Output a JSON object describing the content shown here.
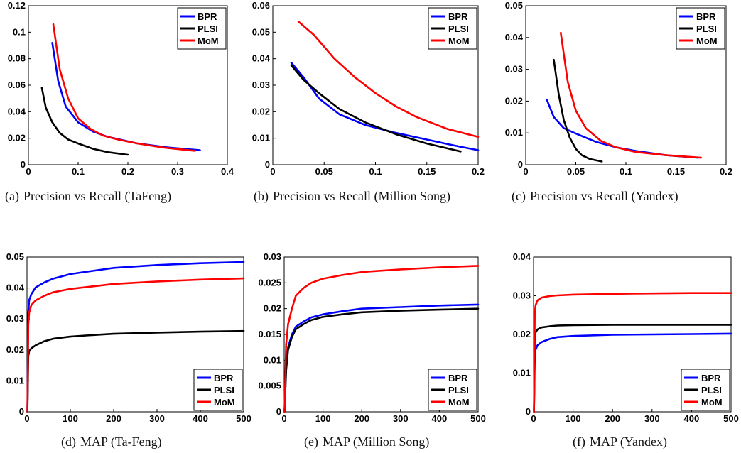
{
  "chart_data": [
    {
      "type": "line",
      "caption_label": "(a)",
      "caption": "Precision vs Recall (TaFeng)",
      "xlim": [
        0,
        0.4
      ],
      "ylim": [
        0,
        0.12
      ],
      "xticks": [
        "0",
        "0.1",
        "0.2",
        "0.3",
        "0.4"
      ],
      "xtick_values": [
        0,
        0.1,
        0.2,
        0.3,
        0.4
      ],
      "yticks": [
        "0",
        "0.02",
        "0.04",
        "0.06",
        "0.08",
        "0.1",
        "0.12"
      ],
      "ytick_values": [
        0,
        0.02,
        0.04,
        0.06,
        0.08,
        0.1,
        0.12
      ],
      "legend_position": "top-right",
      "series": [
        {
          "name": "BPR",
          "color": "#0000ff",
          "x": [
            0.048,
            0.06,
            0.075,
            0.1,
            0.13,
            0.16,
            0.22,
            0.28,
            0.345
          ],
          "y": [
            0.092,
            0.063,
            0.044,
            0.032,
            0.025,
            0.021,
            0.016,
            0.013,
            0.011
          ]
        },
        {
          "name": "PLSI",
          "color": "#000000",
          "x": [
            0.027,
            0.035,
            0.048,
            0.063,
            0.08,
            0.1,
            0.13,
            0.16,
            0.2
          ],
          "y": [
            0.058,
            0.043,
            0.032,
            0.024,
            0.019,
            0.016,
            0.012,
            0.0095,
            0.0075
          ]
        },
        {
          "name": "MoM",
          "color": "#ff0000",
          "x": [
            0.05,
            0.063,
            0.08,
            0.1,
            0.125,
            0.15,
            0.18,
            0.22,
            0.27,
            0.335
          ],
          "y": [
            0.106,
            0.072,
            0.05,
            0.035,
            0.027,
            0.022,
            0.019,
            0.016,
            0.013,
            0.0105
          ]
        }
      ]
    },
    {
      "type": "line",
      "caption_label": "(b)",
      "caption": "Precision vs Recall (Million Song)",
      "xlim": [
        0,
        0.2
      ],
      "ylim": [
        0,
        0.06
      ],
      "xticks": [
        "0",
        "0.05",
        "0.1",
        "0.15",
        "0.2"
      ],
      "xtick_values": [
        0,
        0.05,
        0.1,
        0.15,
        0.2
      ],
      "yticks": [
        "0",
        "0.01",
        "0.02",
        "0.03",
        "0.04",
        "0.05",
        "0.06"
      ],
      "ytick_values": [
        0,
        0.01,
        0.02,
        0.03,
        0.04,
        0.05,
        0.06
      ],
      "legend_position": "top-right",
      "series": [
        {
          "name": "BPR",
          "color": "#0000ff",
          "x": [
            0.018,
            0.03,
            0.045,
            0.065,
            0.09,
            0.12,
            0.15,
            0.18,
            0.2
          ],
          "y": [
            0.0385,
            0.033,
            0.025,
            0.019,
            0.015,
            0.012,
            0.0095,
            0.007,
            0.0055
          ]
        },
        {
          "name": "PLSI",
          "color": "#000000",
          "x": [
            0.018,
            0.03,
            0.045,
            0.065,
            0.09,
            0.12,
            0.15,
            0.183
          ],
          "y": [
            0.0375,
            0.032,
            0.027,
            0.021,
            0.016,
            0.0115,
            0.008,
            0.005
          ]
        },
        {
          "name": "MoM",
          "color": "#ff0000",
          "x": [
            0.025,
            0.04,
            0.06,
            0.08,
            0.1,
            0.12,
            0.14,
            0.17,
            0.2
          ],
          "y": [
            0.054,
            0.049,
            0.04,
            0.033,
            0.027,
            0.022,
            0.018,
            0.0135,
            0.0105
          ]
        }
      ]
    },
    {
      "type": "line",
      "caption_label": "(c)",
      "caption": "Precision vs Recall (Yandex)",
      "xlim": [
        0,
        0.2
      ],
      "ylim": [
        0,
        0.05
      ],
      "xticks": [
        "0",
        "0.05",
        "0.1",
        "0.15",
        "0.2"
      ],
      "xtick_values": [
        0,
        0.05,
        0.1,
        0.15,
        0.2
      ],
      "yticks": [
        "0",
        "0.01",
        "0.02",
        "0.03",
        "0.04",
        "0.05"
      ],
      "ytick_values": [
        0,
        0.01,
        0.02,
        0.03,
        0.04,
        0.05
      ],
      "legend_position": "top-right",
      "series": [
        {
          "name": "BPR",
          "color": "#0000ff",
          "x": [
            0.021,
            0.028,
            0.038,
            0.05,
            0.07,
            0.09,
            0.11,
            0.14,
            0.172
          ],
          "y": [
            0.0205,
            0.015,
            0.0115,
            0.0098,
            0.0072,
            0.0055,
            0.0043,
            0.003,
            0.0022
          ]
        },
        {
          "name": "PLSI",
          "color": "#000000",
          "x": [
            0.028,
            0.033,
            0.038,
            0.044,
            0.05,
            0.056,
            0.064,
            0.076
          ],
          "y": [
            0.033,
            0.022,
            0.014,
            0.0085,
            0.005,
            0.003,
            0.0018,
            0.001
          ]
        },
        {
          "name": "MoM",
          "color": "#ff0000",
          "x": [
            0.035,
            0.042,
            0.05,
            0.06,
            0.075,
            0.09,
            0.11,
            0.14,
            0.175
          ],
          "y": [
            0.0415,
            0.026,
            0.017,
            0.0115,
            0.0075,
            0.0055,
            0.004,
            0.003,
            0.0022
          ]
        }
      ]
    },
    {
      "type": "line",
      "caption_label": "(d)",
      "caption": "MAP (Ta-Feng)",
      "xlim": [
        0,
        500
      ],
      "ylim": [
        0,
        0.05
      ],
      "xticks": [
        "0",
        "100",
        "200",
        "300",
        "400",
        "500"
      ],
      "xtick_values": [
        0,
        100,
        200,
        300,
        400,
        500
      ],
      "yticks": [
        "0",
        "0.01",
        "0.02",
        "0.03",
        "0.04",
        "0.05"
      ],
      "ytick_values": [
        0,
        0.01,
        0.02,
        0.03,
        0.04,
        0.05
      ],
      "legend_position": "bottom-right",
      "series": [
        {
          "name": "BPR",
          "color": "#0000ff",
          "x": [
            1,
            3,
            5,
            10,
            20,
            40,
            60,
            100,
            150,
            200,
            300,
            400,
            500
          ],
          "y": [
            0,
            0.032,
            0.036,
            0.038,
            0.0402,
            0.0418,
            0.043,
            0.0445,
            0.0455,
            0.0465,
            0.0474,
            0.048,
            0.0484
          ]
        },
        {
          "name": "PLSI",
          "color": "#000000",
          "x": [
            1,
            3,
            5,
            10,
            20,
            40,
            60,
            100,
            150,
            200,
            300,
            400,
            500
          ],
          "y": [
            0,
            0.018,
            0.0195,
            0.0205,
            0.0215,
            0.0228,
            0.0236,
            0.0243,
            0.0248,
            0.0252,
            0.0256,
            0.0259,
            0.0261
          ]
        },
        {
          "name": "MoM",
          "color": "#ff0000",
          "x": [
            1,
            3,
            5,
            10,
            20,
            40,
            60,
            100,
            150,
            200,
            300,
            400,
            500
          ],
          "y": [
            0,
            0.028,
            0.032,
            0.0345,
            0.036,
            0.0375,
            0.0386,
            0.0397,
            0.0405,
            0.0413,
            0.0421,
            0.0427,
            0.0431
          ]
        }
      ]
    },
    {
      "type": "line",
      "caption_label": "(e)",
      "caption": "MAP (Million Song)",
      "xlim": [
        0,
        500
      ],
      "ylim": [
        0,
        0.03
      ],
      "xticks": [
        "0",
        "100",
        "200",
        "300",
        "400",
        "500"
      ],
      "xtick_values": [
        0,
        100,
        200,
        300,
        400,
        500
      ],
      "yticks": [
        "0",
        "0.005",
        "0.01",
        "0.015",
        "0.02",
        "0.025",
        "0.03"
      ],
      "ytick_values": [
        0,
        0.005,
        0.01,
        0.015,
        0.02,
        0.025,
        0.03
      ],
      "legend_position": "bottom-right",
      "series": [
        {
          "name": "BPR",
          "color": "#0000ff",
          "x": [
            1,
            5,
            10,
            20,
            30,
            50,
            70,
            100,
            150,
            200,
            300,
            400,
            500
          ],
          "y": [
            0,
            0.009,
            0.0125,
            0.015,
            0.0165,
            0.0175,
            0.0183,
            0.0189,
            0.0195,
            0.02,
            0.0203,
            0.0206,
            0.0208
          ]
        },
        {
          "name": "PLSI",
          "color": "#000000",
          "x": [
            1,
            5,
            10,
            20,
            30,
            50,
            70,
            100,
            150,
            200,
            300,
            400,
            500
          ],
          "y": [
            0,
            0.008,
            0.012,
            0.0145,
            0.016,
            0.017,
            0.0178,
            0.0184,
            0.0189,
            0.0193,
            0.0196,
            0.0198,
            0.02
          ]
        },
        {
          "name": "MoM",
          "color": "#ff0000",
          "x": [
            1,
            5,
            10,
            20,
            30,
            50,
            70,
            100,
            150,
            200,
            300,
            400,
            500
          ],
          "y": [
            0,
            0.013,
            0.017,
            0.02,
            0.0225,
            0.024,
            0.025,
            0.0258,
            0.0265,
            0.0271,
            0.0276,
            0.028,
            0.0283
          ]
        }
      ]
    },
    {
      "type": "line",
      "caption_label": "(f)",
      "caption": "MAP (Yandex)",
      "xlim": [
        0,
        500
      ],
      "ylim": [
        0,
        0.04
      ],
      "xticks": [
        "0",
        "100",
        "200",
        "300",
        "400",
        "500"
      ],
      "xtick_values": [
        0,
        100,
        200,
        300,
        400,
        500
      ],
      "yticks": [
        "0",
        "0.01",
        "0.02",
        "0.03",
        "0.04"
      ],
      "ytick_values": [
        0,
        0.01,
        0.02,
        0.03,
        0.04
      ],
      "legend_position": "bottom-right",
      "series": [
        {
          "name": "BPR",
          "color": "#0000ff",
          "x": [
            1,
            3,
            5,
            10,
            20,
            40,
            60,
            100,
            200,
            300,
            400,
            500
          ],
          "y": [
            0,
            0.014,
            0.016,
            0.0172,
            0.018,
            0.0188,
            0.0193,
            0.0196,
            0.0199,
            0.02,
            0.0201,
            0.0202
          ]
        },
        {
          "name": "PLSI",
          "color": "#000000",
          "x": [
            1,
            3,
            5,
            10,
            20,
            40,
            60,
            100,
            200,
            300,
            400,
            500
          ],
          "y": [
            0,
            0.019,
            0.0205,
            0.0213,
            0.0218,
            0.0221,
            0.0223,
            0.0224,
            0.0225,
            0.0225,
            0.0225,
            0.0225
          ]
        },
        {
          "name": "MoM",
          "color": "#ff0000",
          "x": [
            1,
            3,
            5,
            10,
            20,
            40,
            60,
            100,
            200,
            300,
            400,
            500
          ],
          "y": [
            0,
            0.025,
            0.0275,
            0.0288,
            0.0295,
            0.0299,
            0.0301,
            0.0303,
            0.0305,
            0.0306,
            0.0307,
            0.0307
          ]
        }
      ]
    }
  ]
}
